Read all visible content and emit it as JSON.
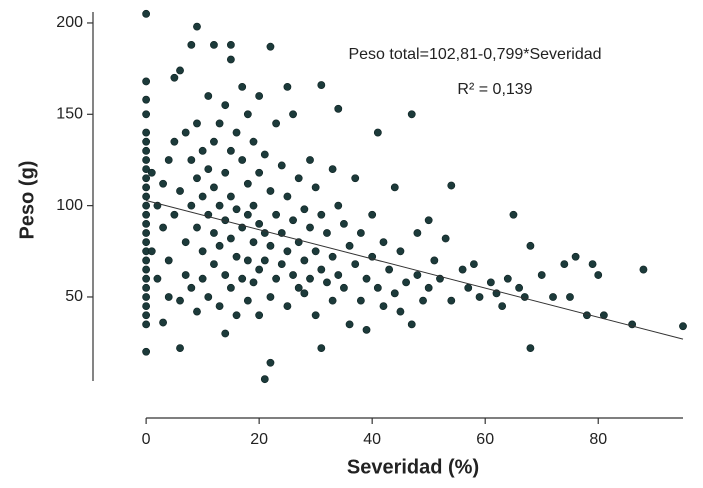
{
  "chart_data": {
    "type": "scatter",
    "x_label": "Severidad (%)",
    "y_label": "Peso (g)",
    "annotations": [
      "Peso total=102,81-0,799*Severidad",
      "R² = 0,139"
    ],
    "color": "#1c3a3a",
    "xlim": [
      -9.4,
      95
    ],
    "ylim": [
      4,
      206
    ],
    "xticks": [
      0,
      20,
      40,
      60,
      80
    ],
    "yticks": [
      50,
      100,
      150,
      200
    ],
    "trend_line": {
      "x": [
        0,
        95
      ],
      "y": [
        102.81,
        26.9
      ]
    },
    "x": [
      0,
      0,
      0,
      0,
      0,
      0,
      0,
      0,
      0,
      0,
      0,
      0,
      0,
      0,
      0,
      0,
      0,
      0,
      0,
      0,
      0,
      0,
      0,
      0,
      0,
      0,
      0,
      1,
      1,
      2,
      2,
      3,
      3,
      3,
      4,
      4,
      4,
      5,
      5,
      5,
      6,
      6,
      6,
      6,
      7,
      7,
      7,
      8,
      8,
      8,
      8,
      9,
      9,
      9,
      9,
      9,
      10,
      10,
      10,
      10,
      11,
      11,
      11,
      11,
      12,
      12,
      12,
      12,
      12,
      13,
      13,
      13,
      13,
      14,
      14,
      14,
      14,
      14,
      15,
      15,
      15,
      15,
      15,
      15,
      16,
      16,
      16,
      16,
      17,
      17,
      17,
      17,
      18,
      18,
      18,
      18,
      18,
      19,
      19,
      19,
      19,
      20,
      20,
      20,
      20,
      20,
      21,
      21,
      21,
      21,
      22,
      22,
      22,
      22,
      22,
      23,
      23,
      23,
      24,
      24,
      24,
      25,
      25,
      25,
      25,
      26,
      26,
      26,
      27,
      27,
      27,
      28,
      28,
      28,
      29,
      29,
      29,
      30,
      30,
      30,
      31,
      31,
      31,
      31,
      32,
      32,
      33,
      33,
      33,
      34,
      34,
      34,
      35,
      35,
      36,
      36,
      37,
      37,
      38,
      38,
      39,
      39,
      40,
      40,
      41,
      41,
      42,
      42,
      43,
      44,
      44,
      45,
      45,
      46,
      47,
      47,
      48,
      48,
      49,
      50,
      50,
      51,
      52,
      53,
      54,
      54,
      56,
      57,
      58,
      59,
      61,
      62,
      63,
      64,
      65,
      66,
      67,
      68,
      68,
      70,
      72,
      74,
      75,
      76,
      78,
      79,
      80,
      81,
      86,
      88,
      95
    ],
    "y": [
      20,
      35,
      40,
      45,
      50,
      55,
      60,
      65,
      70,
      75,
      80,
      85,
      90,
      95,
      100,
      105,
      110,
      115,
      120,
      125,
      130,
      135,
      140,
      150,
      158,
      168,
      205,
      118,
      75,
      60,
      100,
      112,
      36,
      88,
      125,
      70,
      50,
      170,
      95,
      135,
      174,
      48,
      22,
      108,
      140,
      80,
      62,
      188,
      125,
      100,
      55,
      198,
      145,
      115,
      88,
      42,
      130,
      105,
      75,
      60,
      160,
      120,
      95,
      50,
      188,
      135,
      110,
      85,
      68,
      145,
      100,
      78,
      45,
      30,
      155,
      118,
      92,
      62,
      188,
      180,
      130,
      105,
      82,
      55,
      140,
      98,
      72,
      40,
      165,
      125,
      88,
      60,
      150,
      112,
      95,
      70,
      48,
      135,
      100,
      80,
      58,
      160,
      118,
      90,
      65,
      40,
      5,
      128,
      85,
      70,
      187,
      14,
      108,
      78,
      50,
      145,
      95,
      60,
      122,
      85,
      68,
      165,
      105,
      75,
      45,
      150,
      92,
      62,
      115,
      80,
      55,
      98,
      70,
      52,
      125,
      88,
      60,
      110,
      75,
      40,
      166,
      22,
      95,
      65,
      85,
      58,
      120,
      72,
      48,
      153,
      100,
      62,
      90,
      55,
      78,
      35,
      115,
      68,
      85,
      48,
      60,
      32,
      95,
      72,
      140,
      55,
      80,
      45,
      65,
      110,
      52,
      75,
      42,
      58,
      150,
      35,
      85,
      62,
      48,
      92,
      55,
      70,
      60,
      82,
      111,
      48,
      65,
      55,
      68,
      50,
      58,
      52,
      45,
      60,
      95,
      55,
      50,
      78,
      22,
      62,
      50,
      68,
      50,
      72,
      40,
      68,
      62,
      40,
      35,
      65,
      34
    ]
  }
}
